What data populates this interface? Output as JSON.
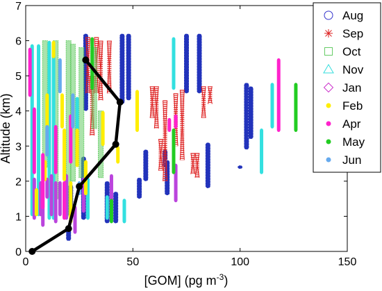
{
  "chart_data": {
    "type": "scatter",
    "xlabel": "[GOM] (pg m",
    "xlabel_superscript": "-3",
    "xlabel_suffix": ")",
    "ylabel": "Altitude (km)",
    "xlim": [
      0,
      150
    ],
    "ylim": [
      0,
      7
    ],
    "x_ticks": [
      0,
      50,
      100,
      150
    ],
    "y_ticks": [
      0,
      1,
      2,
      3,
      4,
      5,
      6,
      7
    ],
    "grid": false,
    "legend_position": "top-right",
    "legend": [
      {
        "name": "Aug",
        "color": "#3333cc",
        "marker": "circle"
      },
      {
        "name": "Sep",
        "color": "#dd2222",
        "marker": "asterisk"
      },
      {
        "name": "Oct",
        "color": "#66cc66",
        "marker": "square"
      },
      {
        "name": "Nov",
        "color": "#33dddd",
        "marker": "triangle"
      },
      {
        "name": "Jan",
        "color": "#cc33cc",
        "marker": "diamond"
      },
      {
        "name": "Feb",
        "color": "#ffee00",
        "marker": "dot"
      },
      {
        "name": "Apr",
        "color": "#ff22cc",
        "marker": "dot"
      },
      {
        "name": "May",
        "color": "#22cc22",
        "marker": "dot"
      },
      {
        "name": "Jun",
        "color": "#66aaee",
        "marker": "dot"
      }
    ],
    "series": [
      {
        "name": "Aug",
        "color": "#2233bb",
        "style": "circles",
        "segments": [
          [
            20,
            0.3,
            0.7
          ],
          [
            21,
            1.0,
            1.9
          ],
          [
            27,
            0.9,
            2.7
          ],
          [
            28,
            4.0,
            6.2
          ],
          [
            38,
            0.8,
            2.0
          ],
          [
            42,
            0.8,
            1.7
          ],
          [
            45,
            4.2,
            6.2
          ],
          [
            48,
            4.3,
            6.2
          ],
          [
            53,
            1.5,
            2.1
          ],
          [
            56,
            2.0,
            2.9
          ],
          [
            65,
            2.4,
            2.9
          ],
          [
            66,
            1.6,
            2.6
          ],
          [
            75,
            4.5,
            6.2
          ],
          [
            81,
            4.5,
            6.2
          ],
          [
            85,
            1.8,
            3.1
          ],
          [
            100,
            2.35,
            2.45
          ],
          [
            103,
            2.9,
            4.8
          ],
          [
            105,
            3.2,
            4.7
          ]
        ]
      },
      {
        "name": "Sep",
        "color": "#dd1f1f",
        "style": "asterisks",
        "segments": [
          [
            29,
            4.5,
            6.1
          ],
          [
            31,
            3.3,
            5.0
          ],
          [
            33,
            4.5,
            6.1
          ],
          [
            35,
            4.3,
            6.0
          ],
          [
            39,
            4.5,
            6.0
          ],
          [
            59,
            3.8,
            4.7
          ],
          [
            61,
            3.5,
            4.7
          ],
          [
            63,
            2.3,
            3.2
          ],
          [
            65,
            2.0,
            4.3
          ],
          [
            70,
            3.0,
            4.5
          ],
          [
            73,
            2.6,
            4.6
          ],
          [
            78,
            2.2,
            2.8
          ],
          [
            80,
            2.1,
            2.8
          ],
          [
            83,
            3.8,
            4.7
          ],
          [
            86,
            4.2,
            4.7
          ]
        ]
      },
      {
        "name": "Oct",
        "color": "#66cc66",
        "style": "squares",
        "segments": [
          [
            9,
            2.4,
            6.0
          ],
          [
            14,
            1.5,
            6.0
          ],
          [
            20,
            1.0,
            6.0
          ],
          [
            22,
            2.0,
            5.9
          ],
          [
            26,
            2.1,
            5.8
          ],
          [
            32,
            3.5,
            5.8
          ],
          [
            35,
            2.1,
            4.0
          ]
        ]
      },
      {
        "name": "Nov",
        "color": "#33e0e0",
        "style": "bar",
        "segments": [
          [
            3,
            1.0,
            5.9
          ],
          [
            6,
            1.0,
            5.9
          ],
          [
            11,
            0.9,
            6.0
          ],
          [
            13,
            0.9,
            5.9
          ],
          [
            24,
            3.2,
            4.4
          ],
          [
            29,
            0.9,
            2.1
          ],
          [
            38,
            0.9,
            1.6
          ],
          [
            46,
            0.8,
            1.5
          ],
          [
            69,
            4.6,
            6.1
          ],
          [
            110,
            2.2,
            3.5
          ],
          [
            115,
            3.5,
            4.8
          ]
        ]
      },
      {
        "name": "Jan",
        "color": "#bb44dd",
        "style": "bar",
        "segments": [
          [
            4,
            0.9,
            2.1
          ],
          [
            7,
            1.0,
            2.0
          ],
          [
            8,
            0.7,
            2.0
          ],
          [
            10,
            1.5,
            2.1
          ],
          [
            12,
            1.0,
            2.2
          ],
          [
            14,
            0.8,
            2.0
          ],
          [
            16,
            1.0,
            2.0
          ],
          [
            19,
            0.9,
            2.2
          ],
          [
            23,
            0.5,
            1.3
          ],
          [
            27,
            1.1,
            2.1
          ],
          [
            40,
            0.9,
            2.2
          ],
          [
            70,
            1.4,
            2.5
          ]
        ]
      },
      {
        "name": "Feb",
        "color": "#ffee00",
        "style": "bar",
        "segments": [
          [
            5,
            1.0,
            1.8
          ],
          [
            9,
            2.0,
            2.6
          ],
          [
            10,
            3.5,
            4.5
          ],
          [
            13,
            5.5,
            6.0
          ],
          [
            17,
            3.5,
            4.5
          ],
          [
            18,
            2.0,
            3.5
          ],
          [
            21,
            0.8,
            2.0
          ],
          [
            24,
            2.4,
            3.5
          ],
          [
            28,
            1.6,
            2.6
          ],
          [
            36,
            3.0,
            4.0
          ],
          [
            43,
            2.5,
            3.0
          ],
          [
            52,
            3.4,
            4.6
          ]
        ]
      },
      {
        "name": "Apr",
        "color": "#ff22cc",
        "style": "bar",
        "segments": [
          [
            2,
            4.4,
            5.8
          ],
          [
            4,
            2.2,
            4.1
          ],
          [
            8,
            1.2,
            2.8
          ],
          [
            14,
            2.2,
            3.6
          ],
          [
            18,
            0.9,
            2.0
          ],
          [
            21,
            2.5,
            3.9
          ],
          [
            67,
            3.4,
            3.8
          ],
          [
            70,
            3.5,
            3.9
          ],
          [
            118,
            3.4,
            5.5
          ]
        ]
      },
      {
        "name": "May",
        "color": "#22cc22",
        "style": "bar",
        "segments": [
          [
            31,
            4.6,
            6.1
          ],
          [
            40,
            0.8,
            1.5
          ],
          [
            69,
            2.2,
            3.5
          ],
          [
            126,
            3.4,
            4.8
          ]
        ]
      },
      {
        "name": "Jun",
        "color": "#66aaee",
        "style": "bar",
        "segments": [
          [
            10,
            2.7,
            3.6
          ],
          [
            16,
            4.5,
            5.5
          ],
          [
            22,
            3.5,
            4.5
          ],
          [
            25,
            1.6,
            2.0
          ]
        ]
      }
    ],
    "profile": {
      "name": "",
      "color": "#000000",
      "points": [
        [
          3,
          0
        ],
        [
          20,
          0.65
        ],
        [
          25,
          1.85
        ],
        [
          42,
          3.05
        ],
        [
          44,
          4.25
        ],
        [
          28,
          5.45
        ]
      ]
    }
  }
}
